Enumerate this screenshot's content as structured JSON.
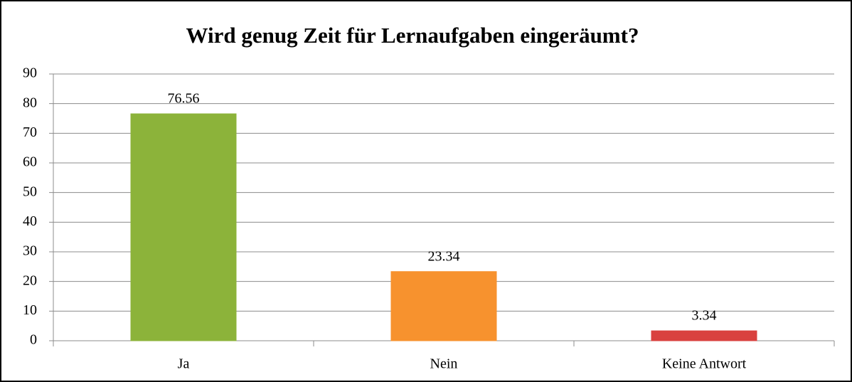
{
  "chart_data": {
    "type": "bar",
    "title": "Wird genug Zeit für Lernaufgaben eingeräumt?",
    "categories": [
      "Ja",
      "Nein",
      "Keine Antwort"
    ],
    "values": [
      76.56,
      23.34,
      3.34
    ],
    "colors": [
      "#8cb33a",
      "#f7922e",
      "#d9413f"
    ],
    "ylim": [
      0,
      90
    ],
    "yticks": [
      0,
      10,
      20,
      30,
      40,
      50,
      60,
      70,
      80,
      90
    ],
    "grid": true
  }
}
